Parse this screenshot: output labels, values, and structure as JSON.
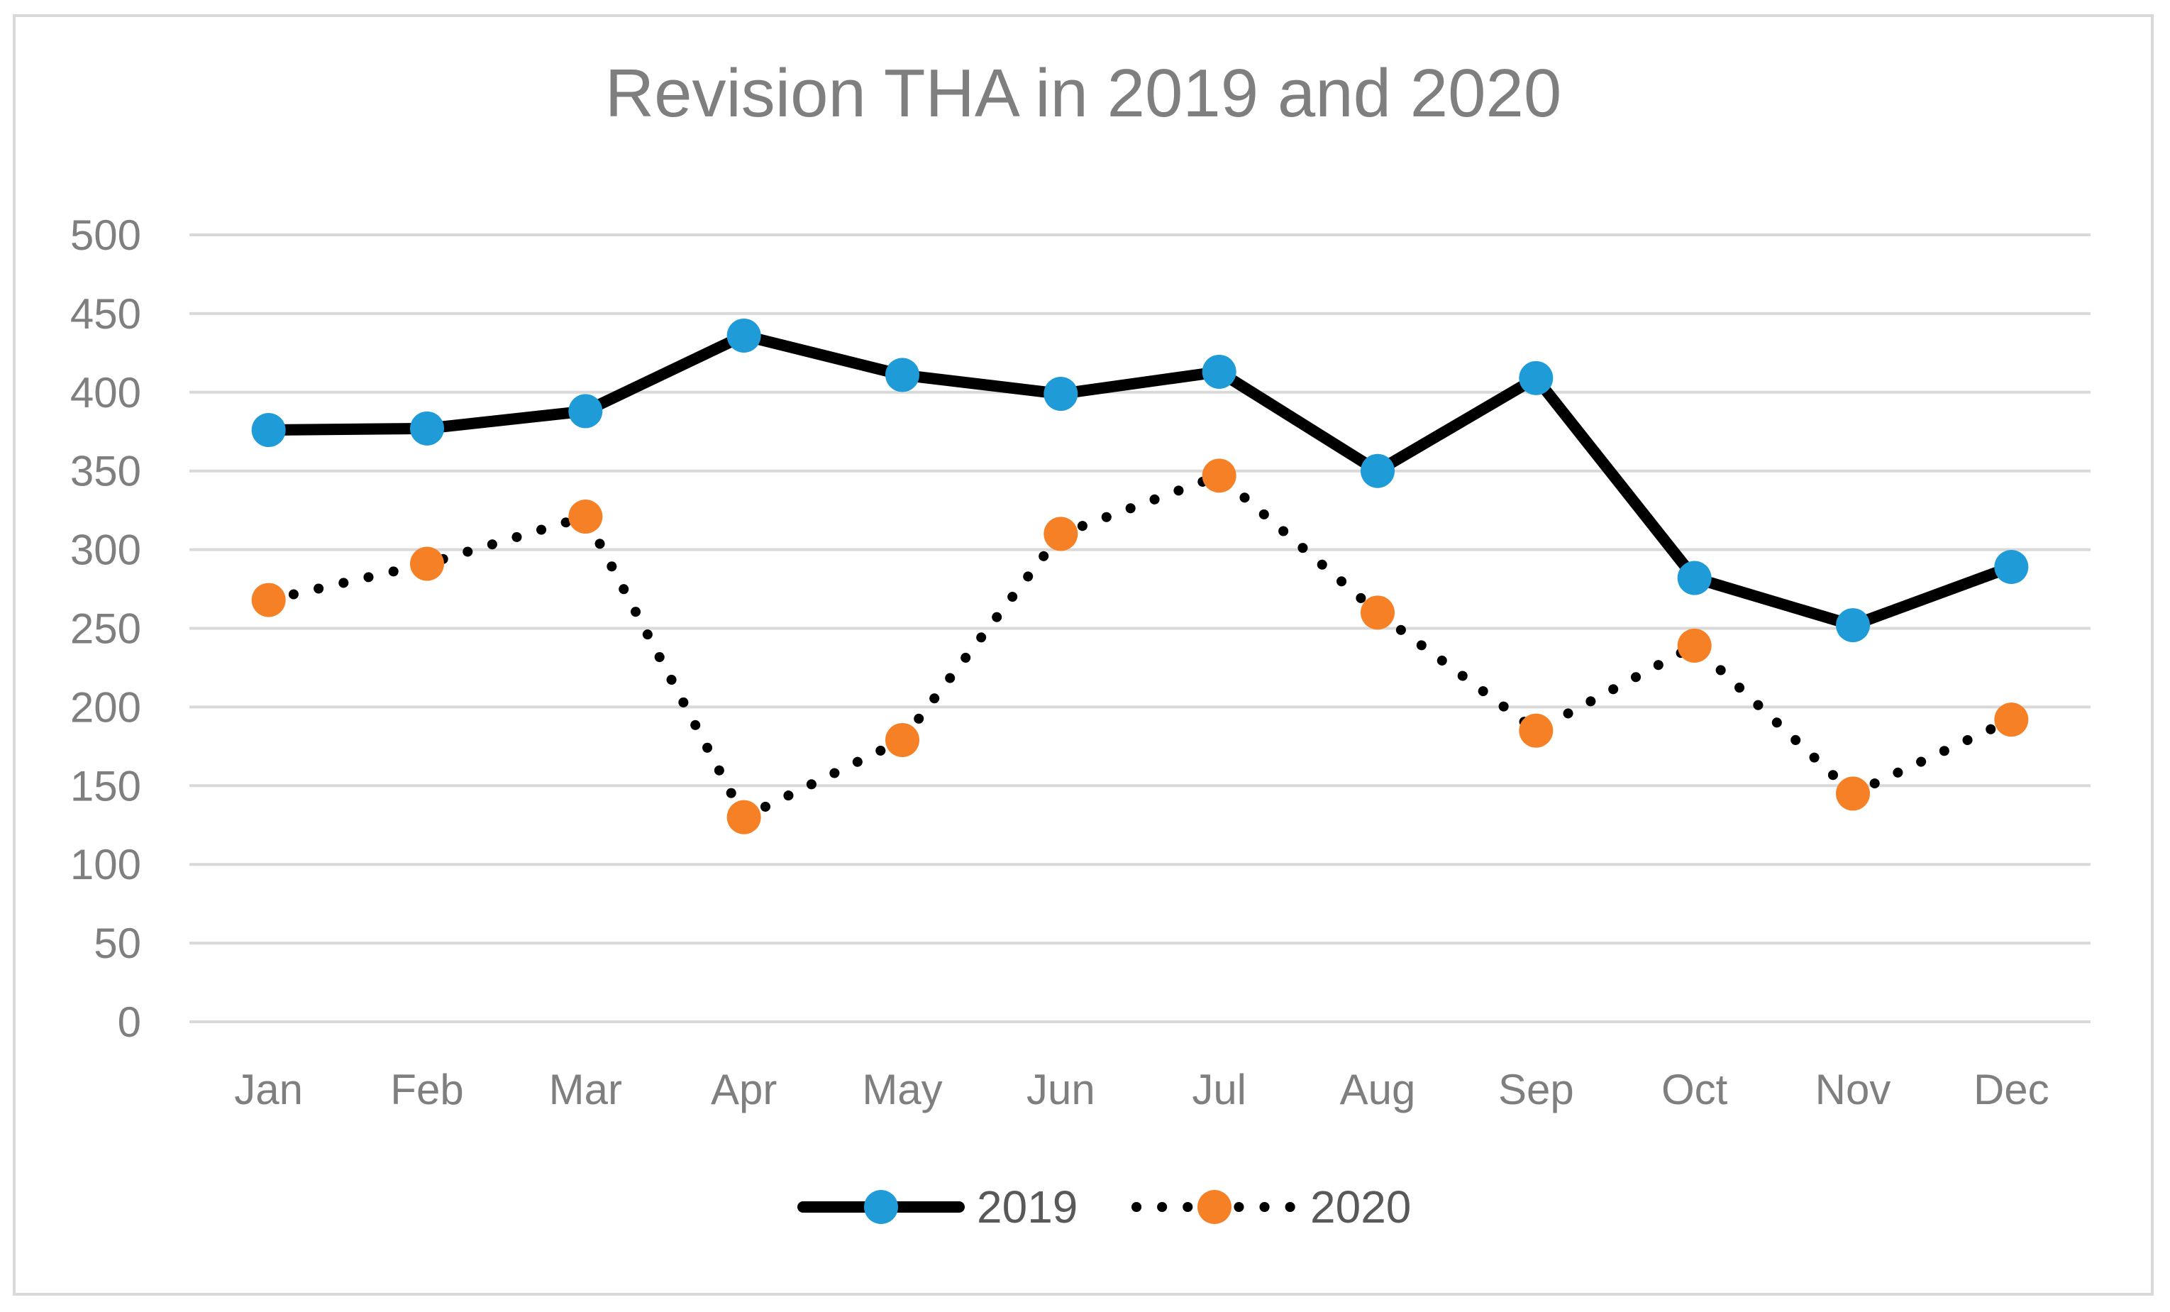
{
  "chart_data": {
    "type": "line",
    "title": "Revision THA in 2019 and 2020",
    "xlabel": "",
    "ylabel": "",
    "categories": [
      "Jan",
      "Feb",
      "Mar",
      "Apr",
      "May",
      "Jun",
      "Jul",
      "Aug",
      "Sep",
      "Oct",
      "Nov",
      "Dec"
    ],
    "ylim": [
      0,
      500
    ],
    "yticks": [
      0,
      50,
      100,
      150,
      200,
      250,
      300,
      350,
      400,
      450,
      500
    ],
    "grid": true,
    "legend_position": "bottom",
    "series": [
      {
        "name": "2019",
        "line_style": "solid",
        "line_color": "#000000",
        "marker_color": "#1f9bd7",
        "values": [
          376,
          377,
          388,
          436,
          411,
          399,
          413,
          350,
          409,
          282,
          252,
          289
        ]
      },
      {
        "name": "2020",
        "line_style": "dotted",
        "line_color": "#000000",
        "marker_color": "#f58025",
        "values": [
          268,
          291,
          321,
          130,
          179,
          310,
          347,
          260,
          185,
          239,
          145,
          192
        ]
      }
    ]
  },
  "colors": {
    "grid": "#d9d9d9",
    "text": "#7f7f7f",
    "frame": "#d9d9d9"
  }
}
